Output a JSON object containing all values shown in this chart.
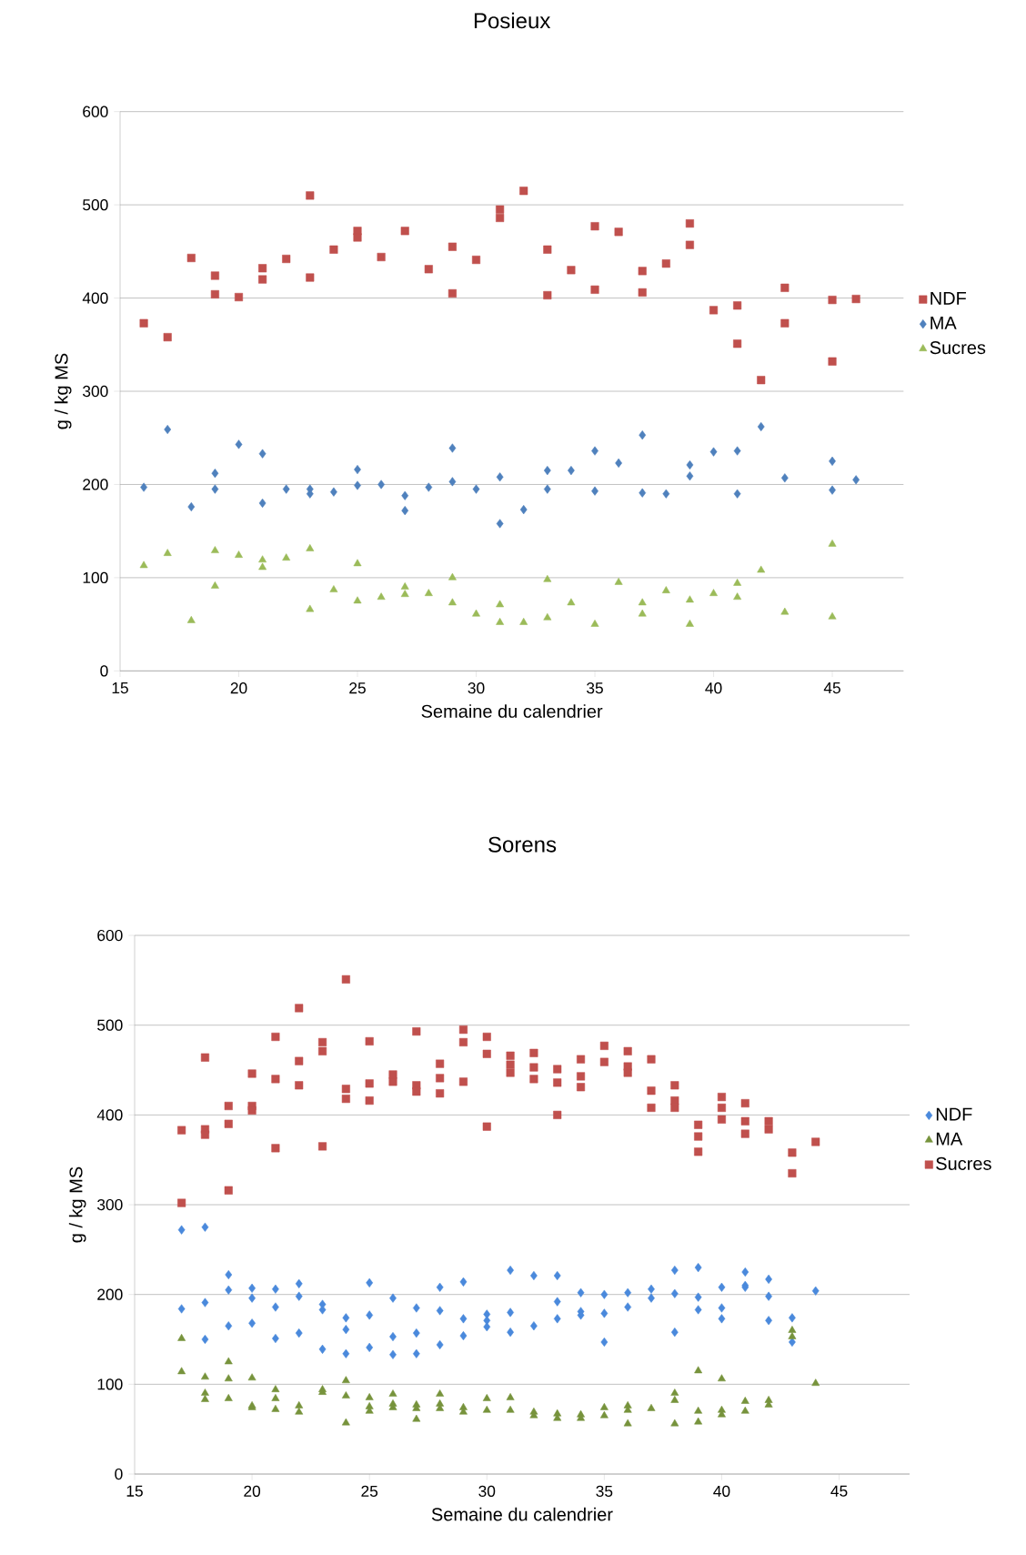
{
  "chart_data": [
    {
      "type": "scatter",
      "title": "Posieux",
      "xlabel": "Semaine du calendrier",
      "ylabel": "g / kg MS",
      "xlim": [
        15,
        48
      ],
      "xticks": [
        15,
        20,
        25,
        30,
        35,
        40,
        45
      ],
      "ylim": [
        0,
        600
      ],
      "yticks": [
        0,
        100,
        200,
        300,
        400,
        500,
        600
      ],
      "grid": "y",
      "legend": "right",
      "series": [
        {
          "name": "NDF",
          "color": "#c0504d",
          "marker": "square",
          "x": [
            16,
            17,
            18,
            19,
            19,
            20,
            21,
            21,
            22,
            23,
            23,
            24,
            25,
            25,
            26,
            27,
            28,
            29,
            29,
            30,
            31,
            31,
            32,
            33,
            33,
            34,
            35,
            35,
            36,
            37,
            37,
            38,
            39,
            39,
            40,
            41,
            41,
            42,
            43,
            43,
            45,
            45,
            46
          ],
          "values": [
            373,
            358,
            443,
            424,
            404,
            401,
            432,
            420,
            442,
            510,
            422,
            452,
            472,
            465,
            444,
            472,
            431,
            455,
            405,
            441,
            495,
            486,
            515,
            452,
            403,
            430,
            477,
            409,
            471,
            429,
            406,
            437,
            480,
            457,
            387,
            392,
            351,
            312,
            411,
            373,
            398,
            332,
            399
          ]
        },
        {
          "name": "MA",
          "color": "#4f81bd",
          "marker": "diamond",
          "x": [
            16,
            17,
            18,
            19,
            19,
            20,
            21,
            21,
            22,
            23,
            23,
            24,
            25,
            25,
            26,
            27,
            27,
            28,
            29,
            29,
            30,
            31,
            31,
            32,
            33,
            33,
            34,
            35,
            35,
            36,
            37,
            37,
            38,
            39,
            39,
            40,
            41,
            41,
            42,
            43,
            45,
            45,
            46
          ],
          "values": [
            197,
            259,
            176,
            212,
            195,
            243,
            233,
            180,
            195,
            195,
            190,
            192,
            216,
            199,
            200,
            188,
            172,
            197,
            239,
            203,
            195,
            208,
            158,
            173,
            215,
            195,
            215,
            236,
            193,
            223,
            253,
            191,
            190,
            221,
            209,
            235,
            236,
            190,
            262,
            207,
            225,
            194,
            205
          ]
        },
        {
          "name": "Sucres",
          "color": "#9bbb59",
          "marker": "triangle",
          "x": [
            16,
            17,
            18,
            19,
            19,
            20,
            21,
            21,
            22,
            23,
            23,
            24,
            25,
            25,
            26,
            27,
            27,
            28,
            29,
            29,
            30,
            31,
            31,
            32,
            33,
            33,
            34,
            35,
            36,
            37,
            37,
            38,
            39,
            39,
            40,
            41,
            41,
            42,
            43,
            45,
            45
          ],
          "values": [
            113,
            126,
            54,
            129,
            91,
            124,
            119,
            111,
            121,
            131,
            66,
            87,
            115,
            75,
            79,
            90,
            82,
            83,
            100,
            73,
            61,
            71,
            52,
            52,
            98,
            57,
            73,
            50,
            95,
            73,
            61,
            86,
            76,
            50,
            83,
            94,
            79,
            108,
            63,
            136,
            58
          ]
        }
      ]
    },
    {
      "type": "scatter",
      "title": "Sorens",
      "xlabel": "Semaine du calendrier",
      "ylabel": "g / kg MS",
      "xlim": [
        15,
        48
      ],
      "xticks": [
        15,
        20,
        25,
        30,
        35,
        40,
        45
      ],
      "ylim": [
        0,
        600
      ],
      "yticks": [
        0,
        100,
        200,
        300,
        400,
        500,
        600
      ],
      "grid": "y",
      "legend": "right",
      "series": [
        {
          "name": "NDF",
          "color": "#4a89dc",
          "marker": "diamond",
          "x": [
            17,
            17,
            18,
            18,
            18,
            19,
            19,
            19,
            20,
            20,
            20,
            21,
            21,
            21,
            22,
            22,
            22,
            23,
            23,
            23,
            24,
            24,
            24,
            25,
            25,
            25,
            26,
            26,
            26,
            27,
            27,
            27,
            28,
            28,
            28,
            29,
            29,
            29,
            30,
            30,
            30,
            31,
            31,
            31,
            32,
            32,
            33,
            33,
            33,
            34,
            34,
            34,
            35,
            35,
            35,
            36,
            36,
            37,
            37,
            38,
            38,
            38,
            39,
            39,
            39,
            40,
            40,
            40,
            41,
            41,
            41,
            42,
            42,
            42,
            43,
            43,
            44
          ],
          "values": [
            272,
            184,
            275,
            191,
            150,
            222,
            205,
            165,
            207,
            196,
            168,
            206,
            186,
            151,
            212,
            198,
            157,
            189,
            183,
            139,
            174,
            161,
            134,
            213,
            177,
            141,
            196,
            153,
            133,
            185,
            157,
            134,
            208,
            182,
            144,
            214,
            173,
            154,
            178,
            171,
            164,
            227,
            180,
            158,
            221,
            165,
            221,
            192,
            173,
            202,
            181,
            177,
            200,
            179,
            147,
            202,
            186,
            206,
            196,
            227,
            201,
            158,
            230,
            197,
            183,
            208,
            185,
            173,
            225,
            210,
            208,
            217,
            198,
            171,
            174,
            147,
            204
          ]
        },
        {
          "name": "MA",
          "color": "#77933c",
          "marker": "triangle",
          "x": [
            17,
            17,
            18,
            18,
            18,
            19,
            19,
            19,
            20,
            20,
            20,
            21,
            21,
            21,
            22,
            22,
            23,
            23,
            24,
            24,
            24,
            25,
            25,
            25,
            26,
            26,
            26,
            27,
            27,
            27,
            28,
            28,
            28,
            29,
            29,
            30,
            30,
            31,
            31,
            32,
            32,
            33,
            33,
            34,
            34,
            35,
            35,
            36,
            36,
            36,
            37,
            38,
            38,
            38,
            39,
            39,
            39,
            40,
            40,
            40,
            41,
            41,
            42,
            42,
            43,
            43,
            44
          ],
          "values": [
            151,
            114,
            108,
            90,
            83,
            125,
            106,
            84,
            107,
            76,
            74,
            94,
            84,
            72,
            76,
            69,
            94,
            91,
            104,
            87,
            57,
            85,
            75,
            70,
            89,
            78,
            74,
            77,
            73,
            61,
            89,
            78,
            73,
            74,
            69,
            84,
            71,
            85,
            71,
            69,
            65,
            67,
            62,
            66,
            62,
            74,
            65,
            76,
            71,
            56,
            73,
            90,
            82,
            56,
            115,
            70,
            58,
            106,
            71,
            66,
            81,
            70,
            82,
            77,
            160,
            153,
            101
          ]
        },
        {
          "name": "Sucres",
          "color": "#c0504d",
          "marker": "square",
          "x": [
            17,
            17,
            18,
            18,
            18,
            19,
            19,
            19,
            20,
            20,
            20,
            21,
            21,
            21,
            22,
            22,
            22,
            23,
            23,
            23,
            24,
            24,
            24,
            25,
            25,
            25,
            26,
            26,
            27,
            27,
            27,
            28,
            28,
            28,
            29,
            29,
            29,
            30,
            30,
            30,
            31,
            31,
            31,
            32,
            32,
            32,
            33,
            33,
            33,
            34,
            34,
            34,
            35,
            35,
            36,
            36,
            36,
            37,
            37,
            37,
            38,
            38,
            38,
            39,
            39,
            39,
            40,
            40,
            40,
            41,
            41,
            41,
            42,
            42,
            43,
            43,
            44
          ],
          "values": [
            383,
            302,
            464,
            384,
            378,
            410,
            390,
            316,
            446,
            410,
            405,
            487,
            440,
            363,
            519,
            460,
            433,
            481,
            471,
            365,
            551,
            429,
            418,
            482,
            435,
            416,
            445,
            437,
            493,
            433,
            426,
            457,
            441,
            424,
            495,
            481,
            437,
            487,
            468,
            387,
            466,
            456,
            447,
            469,
            453,
            440,
            451,
            436,
            400,
            462,
            443,
            431,
            477,
            459,
            471,
            454,
            447,
            462,
            427,
            408,
            433,
            416,
            408,
            389,
            376,
            359,
            420,
            408,
            395,
            413,
            393,
            379,
            393,
            384,
            358,
            335,
            370
          ]
        }
      ]
    }
  ]
}
